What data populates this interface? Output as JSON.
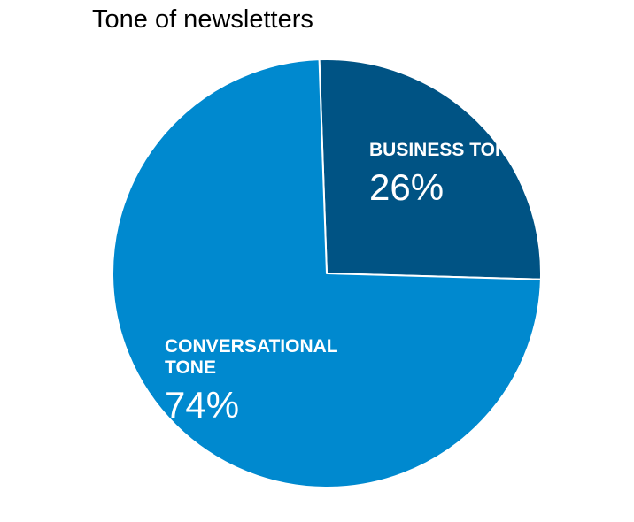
{
  "chart_data": {
    "type": "pie",
    "title": "Tone of newsletters",
    "slices": [
      {
        "label": "BUSINESS TONE",
        "label_lines": [
          "BUSINESS TONE"
        ],
        "value": 26,
        "value_label": "26%",
        "color": "#005384"
      },
      {
        "label": "CONVERSATIONAL TONE",
        "label_lines": [
          "CONVERSATIONAL",
          "TONE"
        ],
        "value": 74,
        "value_label": "74%",
        "color": "#0089CF"
      }
    ],
    "start": "12 o'clock",
    "direction": "clockwise",
    "slice_border_color": "#ffffff"
  }
}
